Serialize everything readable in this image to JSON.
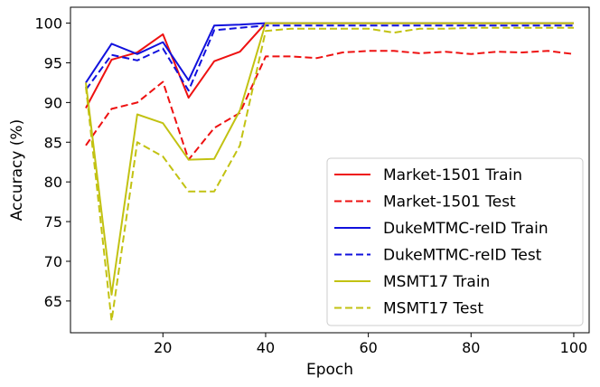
{
  "chart_data": {
    "type": "line",
    "xlabel": "Epoch",
    "ylabel": "Accuracy (%)",
    "xlim": [
      2,
      103
    ],
    "ylim": [
      61,
      102
    ],
    "xticks": [
      20,
      40,
      60,
      80,
      100
    ],
    "yticks": [
      65,
      70,
      75,
      80,
      85,
      90,
      95,
      100
    ],
    "grid": false,
    "legend_position": "bottom-right",
    "series": [
      {
        "name": "Market-1501 Train",
        "color": "#ee1111",
        "dash": "solid",
        "x": [
          5,
          10,
          15,
          20,
          25,
          30,
          35,
          40,
          45,
          50,
          55,
          60,
          65,
          70,
          75,
          80,
          85,
          90,
          95,
          100
        ],
        "y": [
          89.3,
          95.4,
          96.3,
          98.6,
          90.6,
          95.2,
          96.4,
          100,
          100,
          100,
          100,
          100,
          100,
          100,
          100,
          100,
          100,
          100,
          100,
          100
        ]
      },
      {
        "name": "Market-1501 Test",
        "color": "#ee1111",
        "dash": "dashed",
        "x": [
          5,
          10,
          15,
          20,
          25,
          30,
          35,
          40,
          45,
          50,
          55,
          60,
          65,
          70,
          75,
          80,
          85,
          90,
          95,
          100
        ],
        "y": [
          84.6,
          89.2,
          90.0,
          92.6,
          82.8,
          86.8,
          88.7,
          95.8,
          95.8,
          95.6,
          96.3,
          96.5,
          96.5,
          96.2,
          96.4,
          96.1,
          96.4,
          96.3,
          96.5,
          96.1
        ]
      },
      {
        "name": "DukeMTMC-reID Train",
        "color": "#1111dd",
        "dash": "solid",
        "x": [
          5,
          10,
          15,
          20,
          25,
          30,
          35,
          40,
          45,
          50,
          55,
          60,
          65,
          70,
          75,
          80,
          85,
          90,
          95,
          100
        ],
        "y": [
          92.5,
          97.4,
          96.1,
          97.6,
          92.8,
          99.7,
          99.8,
          100,
          100,
          100,
          100,
          100,
          100,
          100,
          100,
          100,
          100,
          100,
          100,
          100
        ]
      },
      {
        "name": "DukeMTMC-reID Test",
        "color": "#1111dd",
        "dash": "dashed",
        "x": [
          5,
          10,
          15,
          20,
          25,
          30,
          35,
          40,
          45,
          50,
          55,
          60,
          65,
          70,
          75,
          80,
          85,
          90,
          95,
          100
        ],
        "y": [
          91.6,
          96.0,
          95.3,
          96.8,
          91.5,
          99.1,
          99.4,
          99.7,
          99.7,
          99.7,
          99.7,
          99.7,
          99.7,
          99.7,
          99.7,
          99.7,
          99.7,
          99.7,
          99.7,
          99.7
        ]
      },
      {
        "name": "MSMT17 Train",
        "color": "#c2c212",
        "dash": "solid",
        "x": [
          5,
          10,
          15,
          20,
          25,
          30,
          35,
          40,
          45,
          50,
          55,
          60,
          65,
          70,
          75,
          80,
          85,
          90,
          95,
          100
        ],
        "y": [
          92.5,
          65.8,
          88.5,
          87.4,
          82.8,
          82.9,
          89.0,
          100,
          100,
          100,
          100,
          100,
          100,
          100,
          100,
          100,
          100,
          100,
          100,
          100
        ]
      },
      {
        "name": "MSMT17 Test",
        "color": "#c2c212",
        "dash": "dashed",
        "x": [
          5,
          10,
          15,
          20,
          25,
          30,
          35,
          40,
          45,
          50,
          55,
          60,
          65,
          70,
          75,
          80,
          85,
          90,
          95,
          100
        ],
        "y": [
          92.0,
          62.5,
          85.0,
          83.2,
          78.8,
          78.8,
          84.6,
          99.0,
          99.3,
          99.3,
          99.3,
          99.3,
          98.8,
          99.3,
          99.3,
          99.4,
          99.4,
          99.4,
          99.4,
          99.4
        ]
      }
    ]
  }
}
